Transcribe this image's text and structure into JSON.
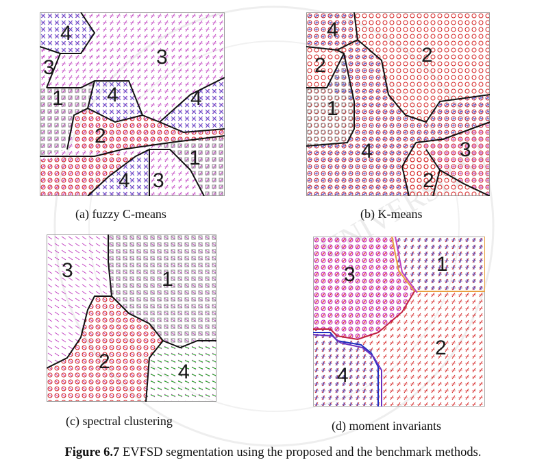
{
  "watermark": {
    "text": "UNIVERSITY"
  },
  "panels": [
    {
      "caption": "(a) fuzzy C-means",
      "labels": [
        "4",
        "3",
        "3",
        "1",
        "4",
        "4",
        "2",
        "1",
        "4",
        "3"
      ]
    },
    {
      "caption": "(b) K-means",
      "labels": [
        "4",
        "2",
        "2",
        "1",
        "4",
        "3",
        "2"
      ]
    },
    {
      "caption": "(c) spectral clustering",
      "labels": [
        "3",
        "1",
        "2",
        "4"
      ]
    },
    {
      "caption": "(d) moment invariants",
      "labels": [
        "3",
        "1",
        "2",
        "4"
      ]
    }
  ],
  "figure_caption": {
    "label": "Figure 6.7",
    "text": " EVFSD segmentation using the proposed and the benchmark  methods."
  },
  "colors": {
    "grey_squares": "#7a7a7a",
    "red_circles": "#d42020",
    "pink_plus": "#c040c0",
    "blue_cross": "#4040c0",
    "green_arrows": "#20b020",
    "magenta_circles": "#c020c0",
    "orange_border": "#e8a040"
  }
}
